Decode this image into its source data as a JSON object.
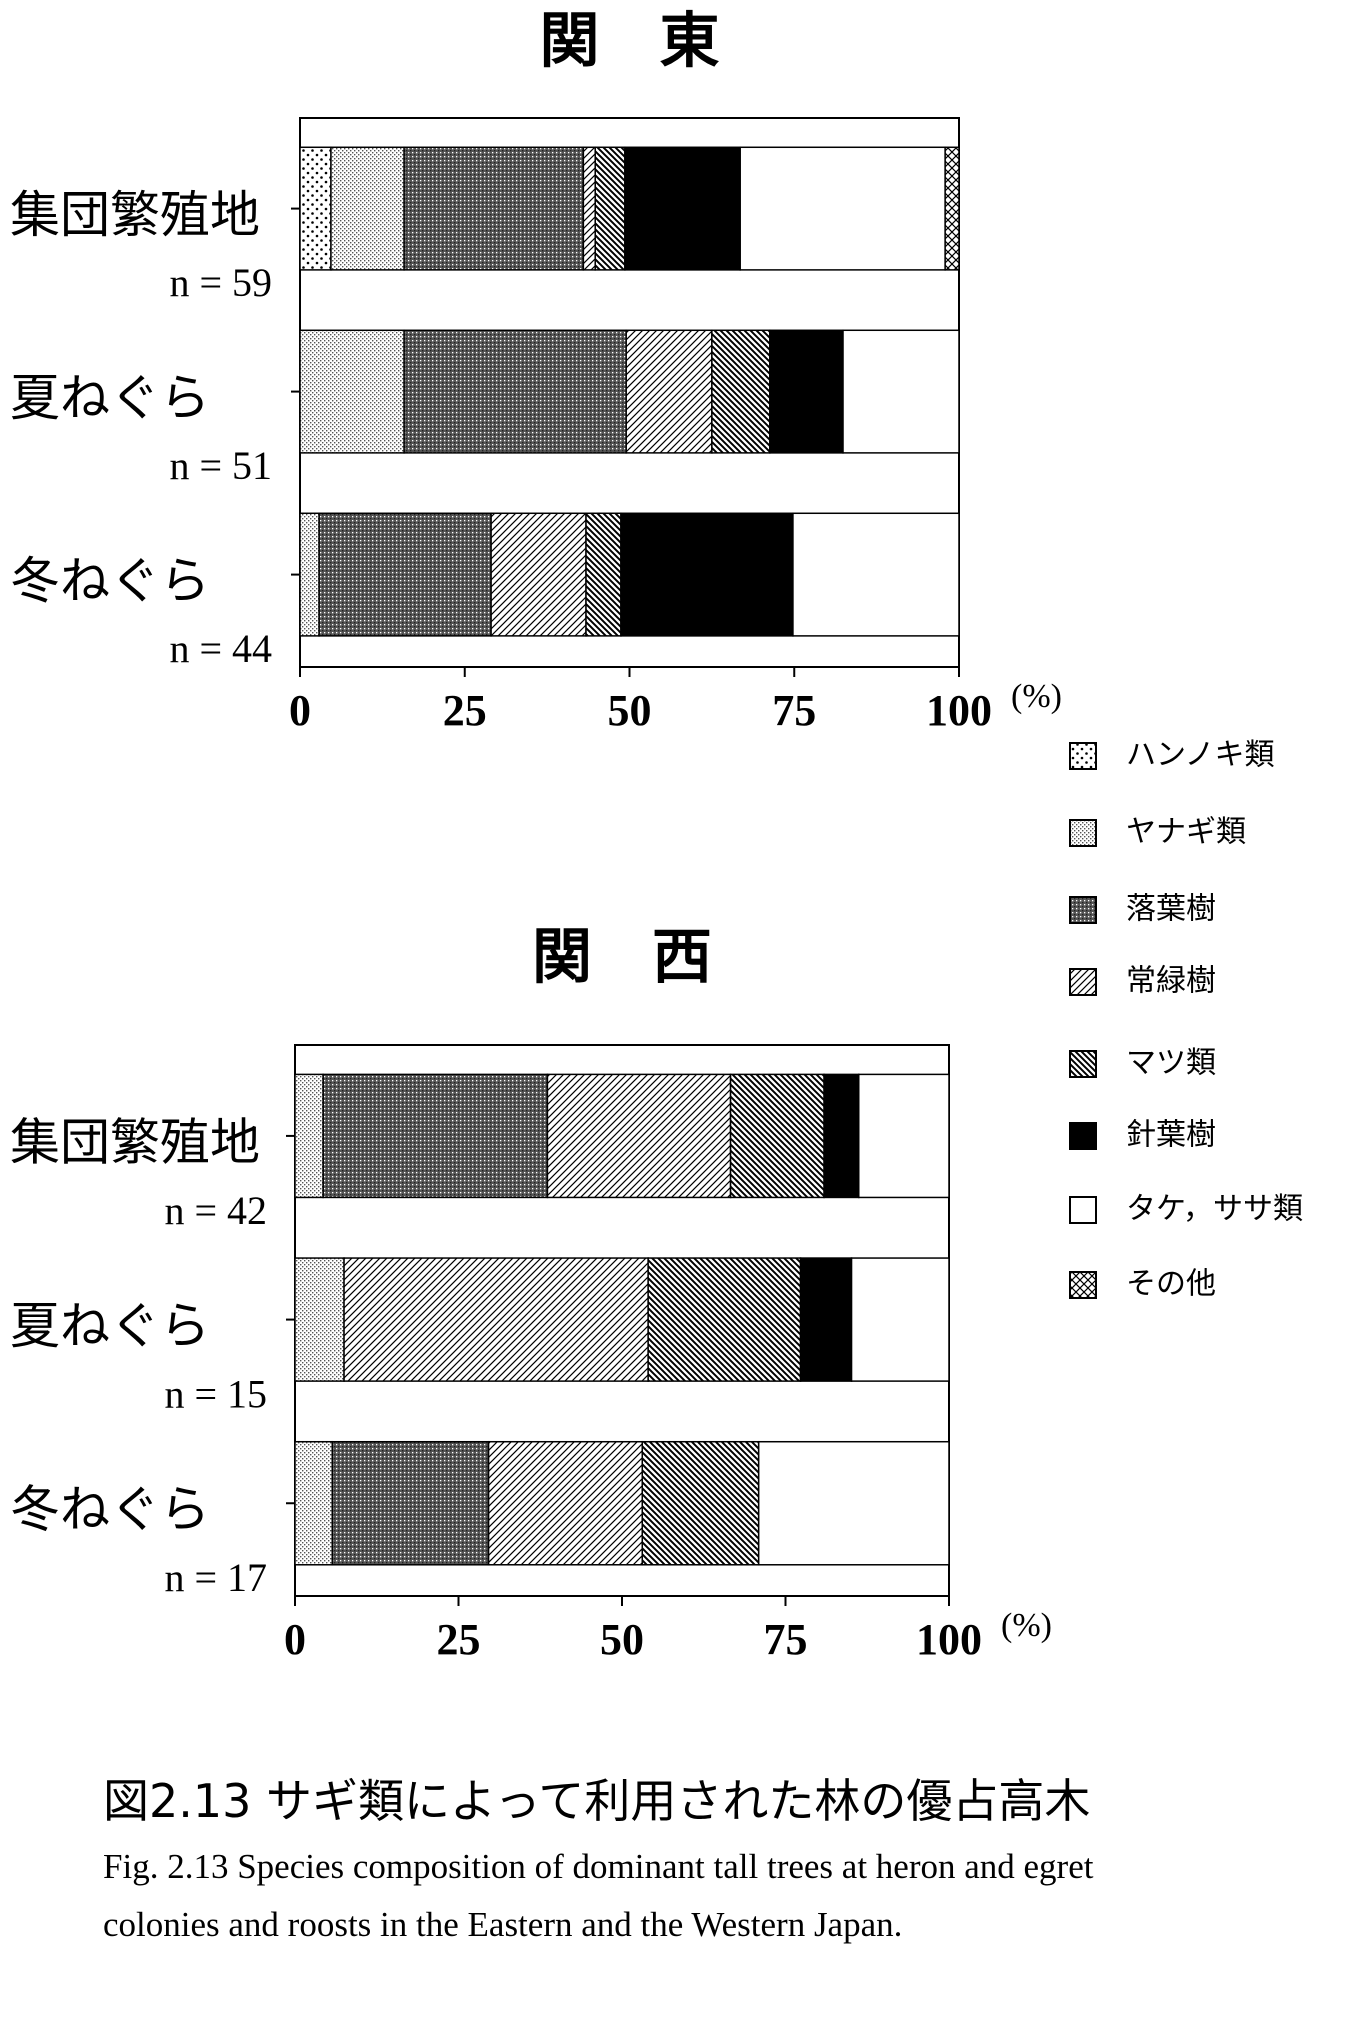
{
  "chart_data": [
    {
      "type": "bar",
      "stacked": true,
      "orientation": "horizontal",
      "title": "関東",
      "categories": [
        "集団繁殖地",
        "夏ねぐら",
        "冬ねぐら"
      ],
      "category_notes": [
        "n = 59",
        "n = 51",
        "n = 44"
      ],
      "xlim": [
        0,
        100
      ],
      "xticks": [
        0,
        25,
        50,
        75,
        100
      ],
      "x_unit": "(%)",
      "series": [
        {
          "name": "ハンノキ類",
          "pattern": "sparse-dots",
          "values": [
            4.7,
            0,
            0
          ]
        },
        {
          "name": "ヤナギ類",
          "pattern": "fine-dots",
          "values": [
            11.1,
            15.8,
            2.9
          ]
        },
        {
          "name": "落葉樹",
          "pattern": "dark-dots",
          "values": [
            27.2,
            33.7,
            26.1
          ]
        },
        {
          "name": "常緑樹",
          "pattern": "diagonal",
          "values": [
            1.8,
            13.0,
            14.4
          ]
        },
        {
          "name": "マツ類",
          "pattern": "back-diagonal",
          "values": [
            4.5,
            8.8,
            5.3
          ]
        },
        {
          "name": "針葉樹",
          "pattern": "solid",
          "values": [
            17.5,
            11.1,
            26.1
          ]
        },
        {
          "name": "タケ，ササ類",
          "pattern": "blank",
          "values": [
            31.1,
            17.6,
            25.2
          ]
        },
        {
          "name": "その他",
          "pattern": "crosshatch",
          "values": [
            2.1,
            0,
            0
          ]
        }
      ]
    },
    {
      "type": "bar",
      "stacked": true,
      "orientation": "horizontal",
      "title": "関西",
      "categories": [
        "集団繁殖地",
        "夏ねぐら",
        "冬ねぐら"
      ],
      "category_notes": [
        "n = 42",
        "n = 15",
        "n = 17"
      ],
      "xlim": [
        0,
        100
      ],
      "xticks": [
        0,
        25,
        50,
        75,
        100
      ],
      "x_unit": "(%)",
      "series": [
        {
          "values": [
            0,
            0,
            0
          ]
        },
        {
          "values": [
            4.3,
            7.5,
            5.7
          ]
        },
        {
          "values": [
            34.3,
            0,
            23.9
          ]
        },
        {
          "values": [
            28.0,
            46.5,
            23.5
          ]
        },
        {
          "values": [
            14.3,
            23.3,
            17.8
          ]
        },
        {
          "values": [
            5.3,
            7.8,
            0
          ]
        },
        {
          "values": [
            13.8,
            14.9,
            29.1
          ]
        },
        {
          "values": [
            0,
            0,
            0
          ]
        }
      ]
    }
  ],
  "caption": {
    "title": "図2.13 サギ類によって利用された林の優占高木",
    "text": "Fig. 2.13  Species composition of dominant tall trees at heron and egret colonies and roosts in the Eastern and the Western Japan."
  }
}
